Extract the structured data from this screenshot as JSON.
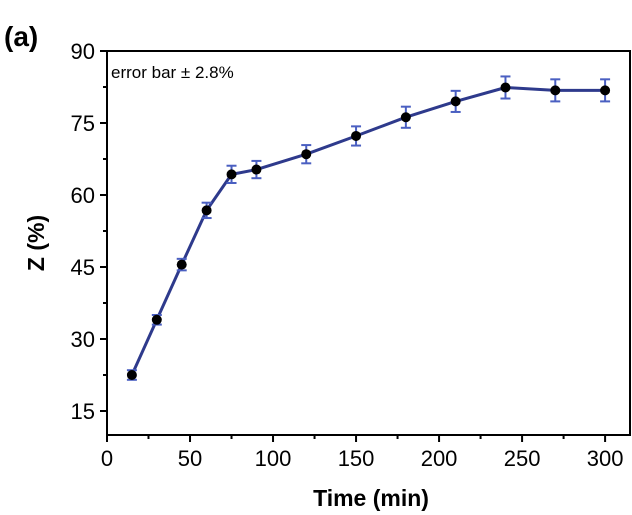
{
  "chart_data": {
    "type": "line",
    "panel_label": "(a)",
    "xlabel": "Time (min)",
    "ylabel": "Z (%)",
    "xlim": [
      0,
      315
    ],
    "ylim": [
      10,
      90
    ],
    "x_ticks": [
      0,
      50,
      100,
      150,
      200,
      250,
      300
    ],
    "y_ticks": [
      15,
      30,
      45,
      60,
      75,
      90
    ],
    "annotation": "error bar ± 2.8%",
    "grid": false,
    "legend": "none",
    "series": [
      {
        "color": "#2e3a8c",
        "error_bar_color": "#4a5fc1",
        "marker_color": "#000000",
        "x": [
          15,
          30,
          45,
          60,
          75,
          90,
          120,
          150,
          180,
          210,
          240,
          270,
          300
        ],
        "y": [
          22.5,
          34.0,
          45.5,
          56.8,
          64.3,
          65.3,
          68.5,
          72.3,
          76.2,
          79.5,
          82.4,
          81.8,
          81.8
        ],
        "error": [
          1.0,
          1.0,
          1.2,
          1.6,
          1.8,
          1.8,
          1.9,
          2.0,
          2.2,
          2.2,
          2.3,
          2.3,
          2.3
        ]
      }
    ]
  }
}
